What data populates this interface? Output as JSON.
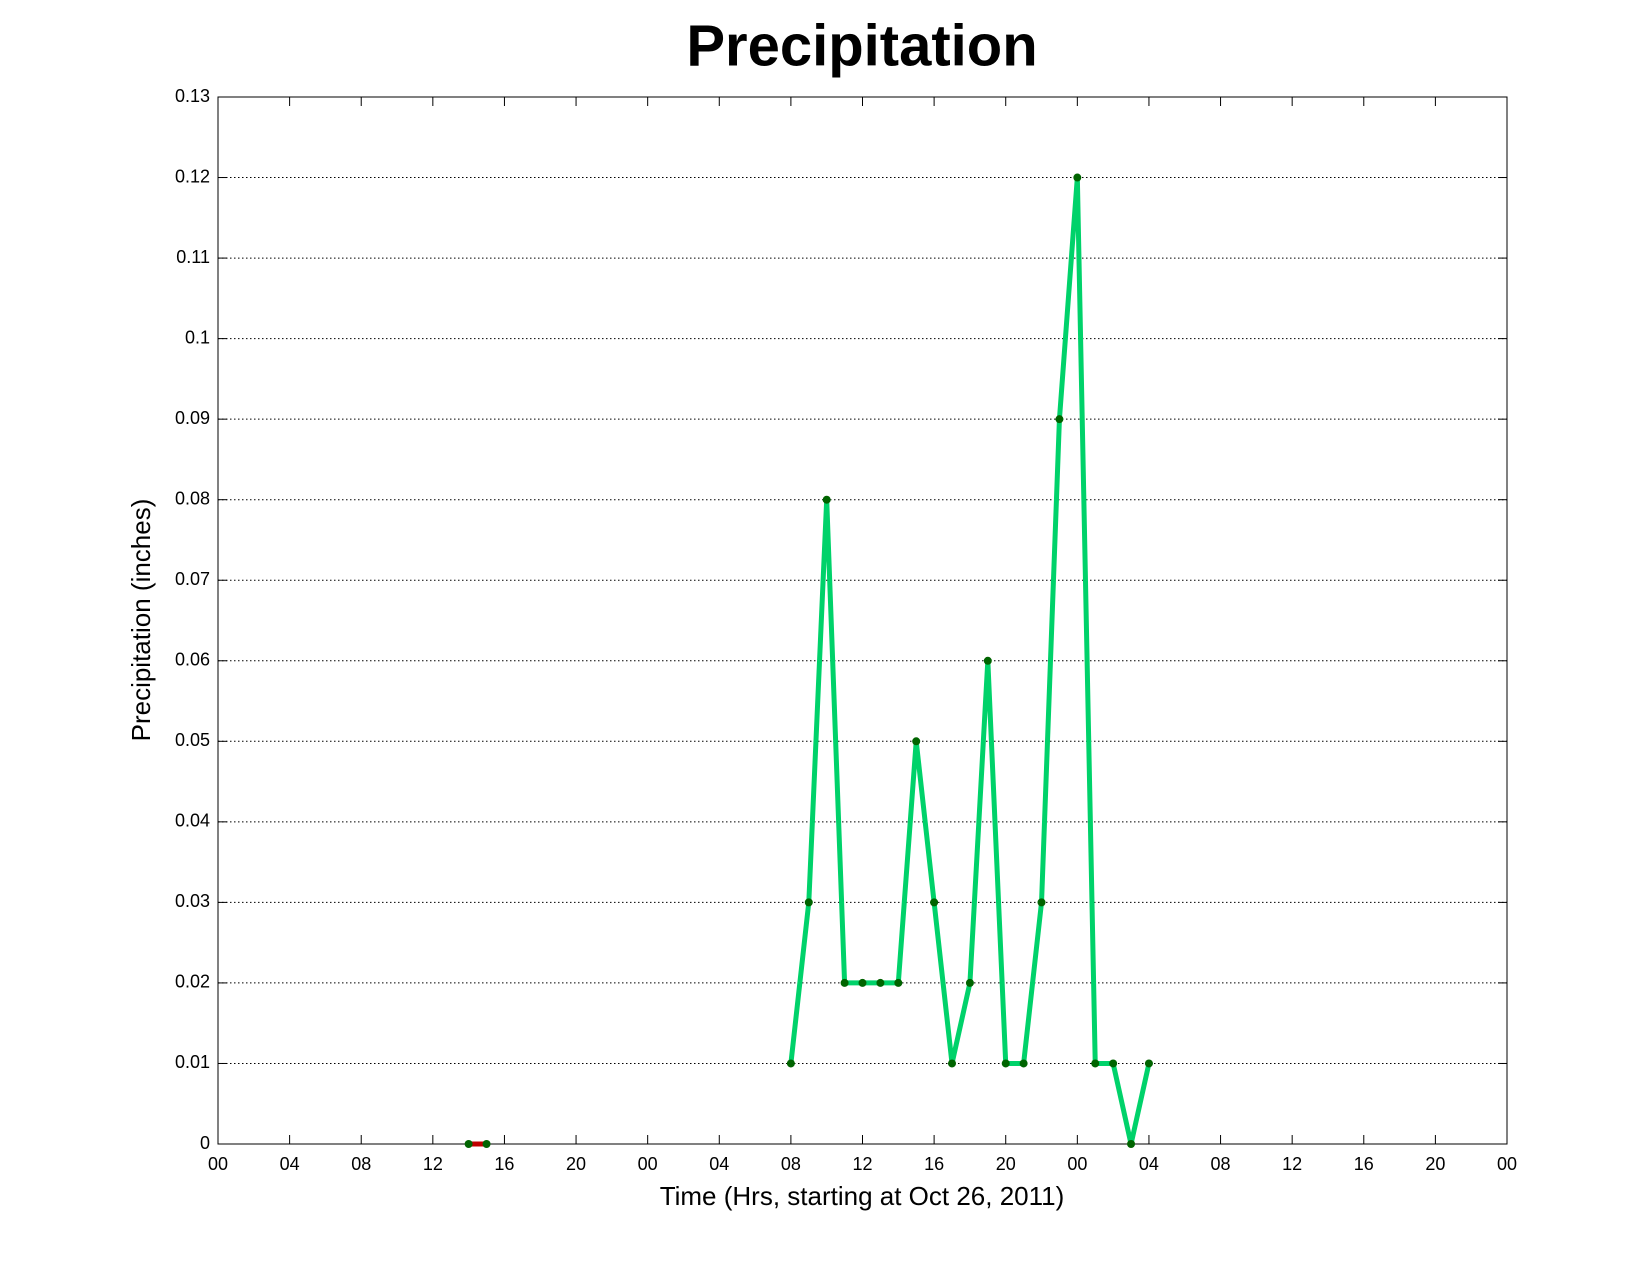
{
  "chart_data": {
    "type": "line",
    "title": "Precipitation",
    "x_label": "Time (Hrs, starting at Oct 26, 2011)",
    "y_label": "Precipitation (inches)",
    "xlim": [
      0,
      72
    ],
    "xticks": [
      {
        "value": 0,
        "label": "00"
      },
      {
        "value": 4,
        "label": "04"
      },
      {
        "value": 8,
        "label": "08"
      },
      12,
      16,
      20,
      {
        "value": 24,
        "label": "00"
      },
      {
        "value": 28,
        "label": "04"
      },
      {
        "value": 32,
        "label": "08"
      },
      {
        "value": 36,
        "label": "12"
      },
      {
        "value": 40,
        "label": "16"
      },
      {
        "value": 44,
        "label": "20"
      },
      {
        "value": 48,
        "label": "00"
      },
      {
        "value": 52,
        "label": "04"
      },
      {
        "value": 56,
        "label": "08"
      },
      {
        "value": 60,
        "label": "12"
      },
      {
        "value": 64,
        "label": "16"
      },
      {
        "value": 68,
        "label": "20"
      },
      {
        "value": 72,
        "label": "00"
      }
    ],
    "ylim": [
      0,
      0.13
    ],
    "yticks": [
      0,
      0.01,
      0.02,
      0.03,
      0.04,
      0.05,
      0.06,
      0.07,
      0.08,
      0.09,
      0.1,
      0.11,
      0.12,
      0.13
    ],
    "grid": true,
    "series": [
      {
        "color": "#c00000",
        "marker_color": "#006400",
        "x": [
          14,
          15
        ],
        "values": [
          0,
          0
        ]
      },
      {
        "color": "#00d26a",
        "marker_color": "#006400",
        "x": [
          32,
          33,
          34,
          35,
          36,
          37,
          38,
          39,
          40,
          41,
          42,
          43,
          44,
          45,
          46,
          47,
          48,
          49,
          50,
          51,
          52
        ],
        "values": [
          0.01,
          0.03,
          0.08,
          0.02,
          0.02,
          0.02,
          0.02,
          0.05,
          0.03,
          0.01,
          0.02,
          0.06,
          0.01,
          0.01,
          0.03,
          0.09,
          0.12,
          0.01,
          0.01,
          0,
          0.01
        ]
      }
    ]
  }
}
